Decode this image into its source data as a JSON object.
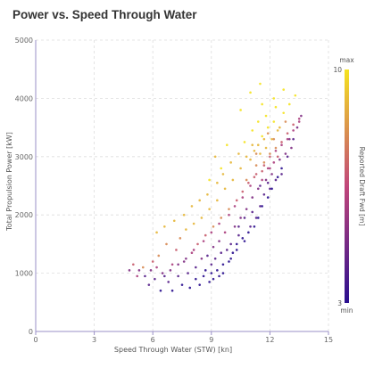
{
  "chart_data": {
    "type": "scatter",
    "title": "Power vs. Speed Through Water",
    "xlabel": "Speed Through Water (STW) [kn]",
    "ylabel": "Total Propulsion Power [kW]",
    "xlim": [
      0,
      15
    ],
    "ylim": [
      0,
      5000
    ],
    "xticks": [
      0,
      3,
      6,
      9,
      12,
      15
    ],
    "yticks": [
      0,
      1000,
      2000,
      3000,
      4000,
      5000
    ],
    "grid": true,
    "colorbar": {
      "label": "Reported Draft Fwd [m]",
      "min": 3,
      "max": 10,
      "min_label": "min",
      "max_label": "max",
      "color_low": "#2a0f8f",
      "color_mid": "#c1467a",
      "color_high": "#f5e31f"
    },
    "description_note": "",
    "series": [
      {
        "points": [
          [
            4.8,
            1050,
            5
          ],
          [
            5.2,
            950,
            6
          ],
          [
            5.5,
            1100,
            8
          ],
          [
            5.8,
            800,
            4
          ],
          [
            6.0,
            1200,
            7
          ],
          [
            6.1,
            900,
            4
          ],
          [
            6.3,
            1300,
            8
          ],
          [
            6.4,
            700,
            3
          ],
          [
            6.5,
            1000,
            5
          ],
          [
            6.7,
            1500,
            8
          ],
          [
            6.8,
            850,
            4
          ],
          [
            7.0,
            1150,
            6
          ],
          [
            7.0,
            700,
            3
          ],
          [
            7.2,
            1400,
            7
          ],
          [
            7.3,
            950,
            4
          ],
          [
            7.4,
            1600,
            8
          ],
          [
            7.5,
            800,
            3
          ],
          [
            7.6,
            1200,
            5
          ],
          [
            7.7,
            1750,
            9
          ],
          [
            7.8,
            1000,
            4
          ],
          [
            7.9,
            750,
            3
          ],
          [
            8.0,
            1350,
            6
          ],
          [
            8.1,
            1850,
            9
          ],
          [
            8.2,
            900,
            3
          ],
          [
            8.2,
            1100,
            4
          ],
          [
            8.3,
            1500,
            7
          ],
          [
            8.4,
            800,
            3
          ],
          [
            8.5,
            1250,
            5
          ],
          [
            8.5,
            1950,
            9
          ],
          [
            8.6,
            950,
            3
          ],
          [
            8.7,
            1050,
            3
          ],
          [
            8.7,
            1650,
            7
          ],
          [
            8.8,
            1300,
            4
          ],
          [
            8.9,
            2100,
            9
          ],
          [
            9.0,
            1000,
            3
          ],
          [
            9.0,
            1150,
            4
          ],
          [
            9.1,
            1450,
            5
          ],
          [
            9.1,
            1800,
            8
          ],
          [
            9.2,
            1250,
            4
          ],
          [
            9.3,
            2250,
            9
          ],
          [
            9.3,
            1050,
            3
          ],
          [
            9.4,
            1550,
            5
          ],
          [
            9.5,
            1350,
            4
          ],
          [
            9.5,
            1950,
            8
          ],
          [
            9.6,
            1150,
            3
          ],
          [
            9.7,
            2450,
            9
          ],
          [
            9.7,
            1700,
            6
          ],
          [
            9.8,
            1400,
            4
          ],
          [
            9.9,
            2100,
            8
          ],
          [
            10.0,
            1500,
            4
          ],
          [
            10.0,
            1250,
            3
          ],
          [
            10.1,
            2600,
            9
          ],
          [
            10.2,
            1800,
            5
          ],
          [
            10.3,
            2250,
            7
          ],
          [
            10.3,
            1400,
            3
          ],
          [
            10.4,
            1650,
            4
          ],
          [
            10.5,
            2800,
            9
          ],
          [
            10.5,
            1950,
            5
          ],
          [
            10.6,
            2400,
            7
          ],
          [
            10.7,
            1550,
            3
          ],
          [
            10.8,
            2100,
            5
          ],
          [
            10.8,
            3000,
            9
          ],
          [
            10.9,
            2550,
            7
          ],
          [
            11.0,
            1800,
            4
          ],
          [
            11.0,
            2950,
            9
          ],
          [
            11.1,
            2300,
            5
          ],
          [
            11.2,
            3100,
            9
          ],
          [
            11.2,
            2650,
            7
          ],
          [
            11.3,
            1950,
            4
          ],
          [
            11.3,
            2850,
            8
          ],
          [
            11.4,
            3200,
            9
          ],
          [
            11.4,
            2450,
            5
          ],
          [
            11.5,
            3050,
            9
          ],
          [
            11.5,
            2150,
            4
          ],
          [
            11.6,
            2750,
            7
          ],
          [
            11.6,
            3350,
            10
          ],
          [
            11.7,
            2900,
            8
          ],
          [
            11.7,
            2350,
            4
          ],
          [
            11.8,
            3150,
            9
          ],
          [
            11.8,
            2600,
            5
          ],
          [
            11.9,
            3500,
            10
          ],
          [
            11.9,
            2800,
            6
          ],
          [
            12.0,
            3050,
            8
          ],
          [
            12.0,
            2450,
            4
          ],
          [
            12.1,
            3300,
            9
          ],
          [
            12.1,
            2700,
            5
          ],
          [
            12.2,
            3600,
            10
          ],
          [
            12.2,
            2900,
            6
          ],
          [
            12.3,
            3150,
            8
          ],
          [
            12.4,
            3450,
            9
          ],
          [
            12.5,
            2950,
            5
          ],
          [
            12.6,
            3250,
            7
          ],
          [
            12.7,
            3750,
            10
          ],
          [
            12.8,
            3050,
            5
          ],
          [
            12.9,
            3400,
            7
          ],
          [
            13.0,
            3900,
            10
          ],
          [
            13.1,
            3150,
            5
          ],
          [
            13.2,
            3550,
            7
          ],
          [
            13.3,
            4050,
            10
          ],
          [
            13.5,
            3650,
            6
          ],
          [
            11.0,
            4100,
            10
          ],
          [
            11.5,
            4250,
            10
          ],
          [
            12.2,
            4000,
            10
          ],
          [
            12.7,
            4150,
            10
          ],
          [
            10.5,
            3800,
            10
          ],
          [
            9.8,
            3200,
            10
          ],
          [
            9.5,
            2800,
            10
          ],
          [
            8.9,
            2600,
            10
          ],
          [
            9.2,
            3000,
            9
          ],
          [
            11.6,
            3900,
            10
          ],
          [
            12.9,
            3000,
            4
          ],
          [
            13.2,
            3300,
            4
          ],
          [
            13.4,
            3500,
            5
          ],
          [
            13.6,
            3700,
            5
          ],
          [
            12.6,
            2800,
            3
          ],
          [
            12.4,
            2650,
            3
          ],
          [
            12.1,
            2450,
            3
          ],
          [
            11.9,
            2300,
            3
          ],
          [
            11.6,
            2150,
            3
          ],
          [
            11.4,
            1950,
            3
          ],
          [
            11.2,
            1800,
            3
          ],
          [
            10.9,
            1700,
            3
          ],
          [
            10.6,
            1600,
            3
          ],
          [
            10.3,
            1500,
            3
          ],
          [
            10.1,
            1350,
            3
          ],
          [
            9.9,
            1200,
            3
          ],
          [
            9.6,
            1000,
            3
          ],
          [
            9.4,
            950,
            3
          ],
          [
            9.1,
            900,
            3
          ],
          [
            8.9,
            850,
            3
          ],
          [
            6.2,
            1700,
            9
          ],
          [
            6.6,
            1800,
            9
          ],
          [
            7.1,
            1900,
            9
          ],
          [
            7.6,
            2000,
            9
          ],
          [
            8.0,
            2150,
            9
          ],
          [
            8.4,
            2250,
            9
          ],
          [
            8.8,
            2350,
            9
          ],
          [
            9.3,
            2550,
            9
          ],
          [
            9.6,
            2700,
            9
          ],
          [
            10.0,
            2900,
            9
          ],
          [
            10.4,
            3050,
            9
          ],
          [
            10.7,
            3250,
            10
          ],
          [
            11.1,
            3450,
            10
          ],
          [
            11.4,
            3600,
            10
          ],
          [
            11.8,
            3700,
            10
          ],
          [
            12.3,
            3850,
            10
          ],
          [
            12.5,
            3500,
            9
          ],
          [
            11.7,
            3300,
            9
          ],
          [
            11.1,
            3200,
            9
          ],
          [
            10.8,
            2600,
            8
          ],
          [
            5.0,
            1150,
            7
          ],
          [
            5.3,
            1050,
            5
          ],
          [
            5.6,
            950,
            4
          ],
          [
            5.9,
            1050,
            5
          ],
          [
            6.2,
            1100,
            6
          ],
          [
            6.6,
            950,
            4
          ],
          [
            6.9,
            1050,
            5
          ],
          [
            7.3,
            1150,
            5
          ],
          [
            7.7,
            1250,
            5
          ],
          [
            8.1,
            1400,
            6
          ],
          [
            8.6,
            1550,
            6
          ],
          [
            9.0,
            1700,
            6
          ],
          [
            9.4,
            1850,
            6
          ],
          [
            9.9,
            2000,
            6
          ],
          [
            10.2,
            2150,
            6
          ],
          [
            10.6,
            2300,
            6
          ],
          [
            11.0,
            2500,
            6
          ],
          [
            11.3,
            2700,
            7
          ],
          [
            11.7,
            2850,
            7
          ],
          [
            12.0,
            3000,
            7
          ],
          [
            12.3,
            3100,
            6
          ],
          [
            12.6,
            3200,
            6
          ],
          [
            12.9,
            3300,
            6
          ],
          [
            13.2,
            3450,
            6
          ],
          [
            13.5,
            3600,
            6
          ],
          [
            11.9,
            2550,
            4
          ],
          [
            11.5,
            2500,
            4
          ],
          [
            11.1,
            2050,
            4
          ],
          [
            10.7,
            1950,
            4
          ],
          [
            10.4,
            1800,
            4
          ],
          [
            12.2,
            3300,
            8
          ],
          [
            12.4,
            3000,
            7
          ],
          [
            11.9,
            3400,
            8
          ],
          [
            11.3,
            3050,
            8
          ],
          [
            11.6,
            2600,
            6
          ],
          [
            12.0,
            2800,
            6
          ],
          [
            12.3,
            2600,
            4
          ],
          [
            12.6,
            2700,
            4
          ],
          [
            12.8,
            3600,
            8
          ],
          [
            13.0,
            3300,
            5
          ]
        ]
      }
    ]
  }
}
